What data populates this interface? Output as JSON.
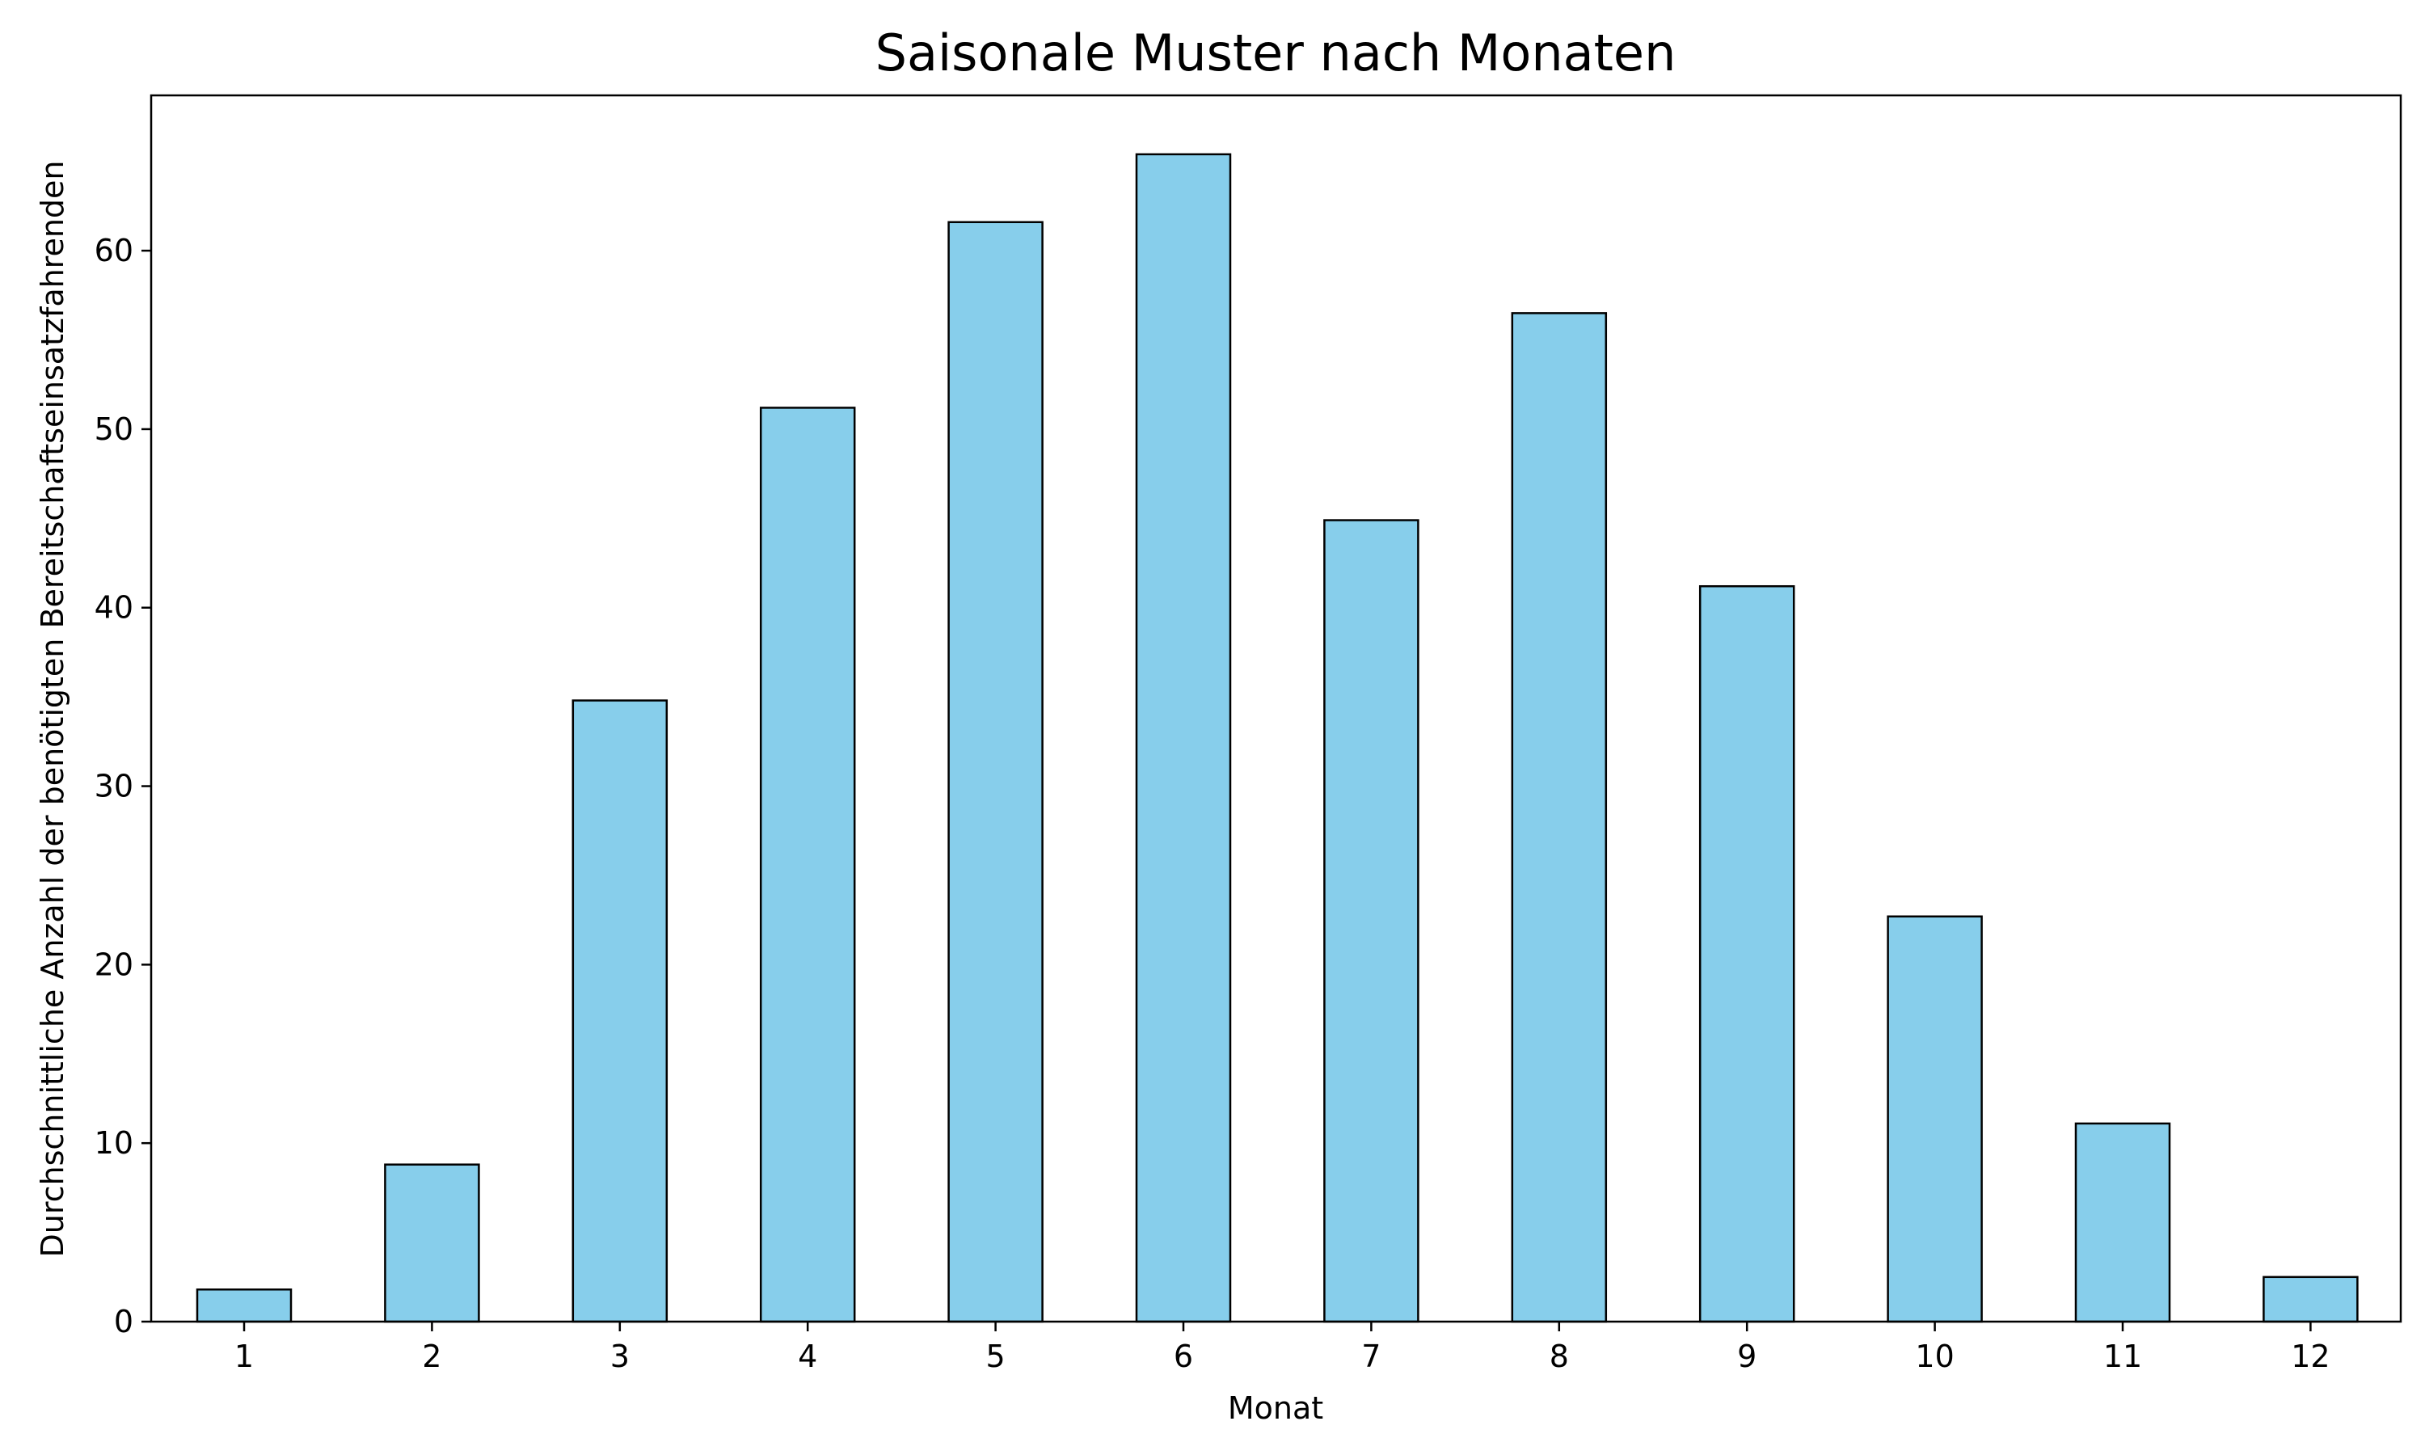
{
  "chart_data": {
    "type": "bar",
    "title": "Saisonale Muster nach Monaten",
    "xlabel": "Monat",
    "ylabel": "Durchschnittliche Anzahl der benötigten Bereitschaftseinsatzfahrenden",
    "categories": [
      "1",
      "2",
      "3",
      "4",
      "5",
      "6",
      "7",
      "8",
      "9",
      "10",
      "11",
      "12"
    ],
    "values": [
      1.8,
      8.8,
      34.8,
      51.2,
      61.6,
      65.4,
      44.9,
      56.5,
      41.2,
      22.7,
      11.1,
      2.5
    ],
    "ylim": [
      0,
      68.7
    ],
    "yticks": [
      0,
      10,
      20,
      30,
      40,
      50,
      60
    ],
    "grid": false,
    "legend": "none",
    "colors": {
      "bar_fill": "#87CEEB",
      "bar_edge": "#000000"
    }
  }
}
